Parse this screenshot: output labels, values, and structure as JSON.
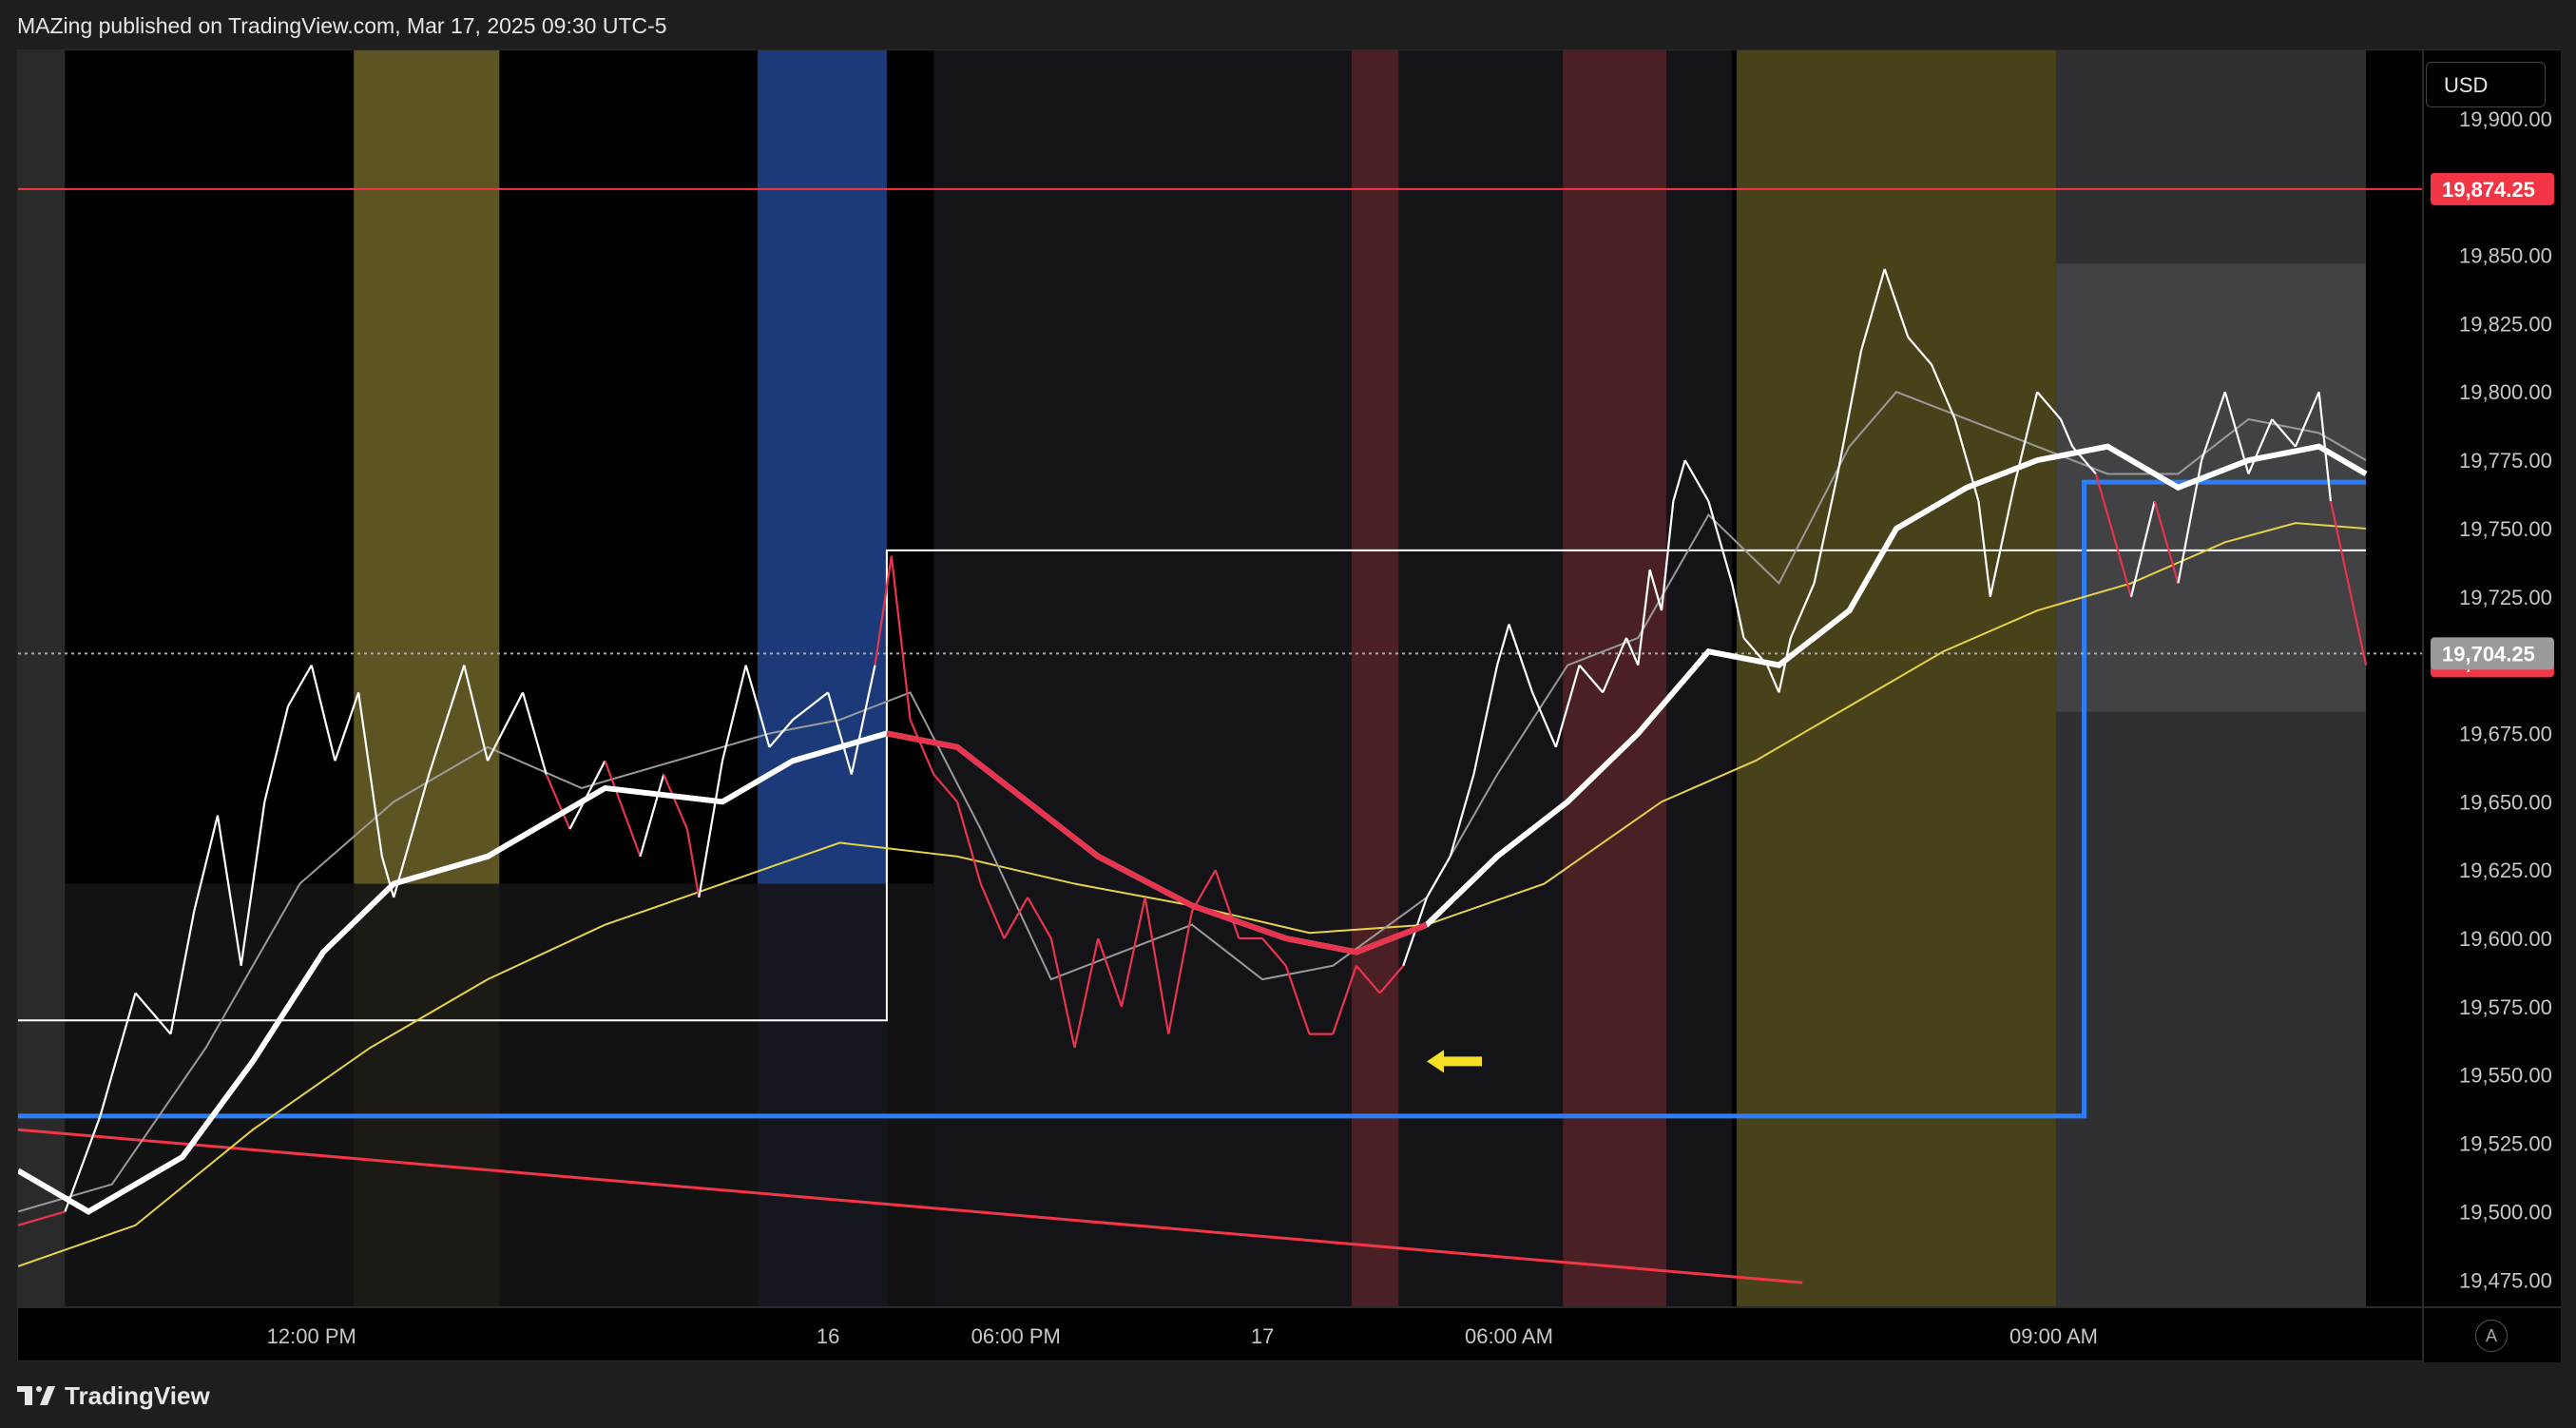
{
  "header": {
    "text": "MAZing published on TradingView.com, Mar 17, 2025 09:30 UTC-5"
  },
  "brand": {
    "name": "TradingView"
  },
  "axis": {
    "currency": "USD",
    "auto_label": "A"
  },
  "colors": {
    "background": "#000000",
    "price_up": "#ffffff",
    "price_down": "#e8344e",
    "red_line": "#f23645",
    "blue_box": "#2f7df6",
    "yellow_ma": "#e6d34a",
    "gray_ma": "#9a9a9a",
    "arrow": "#f5e025"
  },
  "chart_data": {
    "type": "line",
    "symbol_currency": "USD",
    "ylim": [
      19465,
      19925
    ],
    "y_ticks": [
      19475,
      19500,
      19525,
      19550,
      19575,
      19600,
      19625,
      19650,
      19675,
      19700,
      19725,
      19750,
      19775,
      19800,
      19825,
      19850,
      19875,
      19900
    ],
    "y_tick_labels": [
      "19,475.00",
      "19,500.00",
      "19,525.00",
      "19,550.00",
      "19,575.00",
      "19,600.00",
      "19,625.00",
      "19,650.00",
      "19,675.00",
      "19,700.00",
      "19,725.00",
      "19,750.00",
      "19,775.00",
      "19,800.00",
      "19,825.00",
      "19,850.00",
      "19,875.00",
      "19,900.00"
    ],
    "x_tick_labels": [
      {
        "t": 0.125,
        "label": "12:00 PM"
      },
      {
        "t": 0.345,
        "label": "16"
      },
      {
        "t": 0.425,
        "label": "06:00 PM"
      },
      {
        "t": 0.53,
        "label": "17"
      },
      {
        "t": 0.635,
        "label": "06:00 AM"
      },
      {
        "t": 0.867,
        "label": "09:00 AM"
      }
    ],
    "price_labels": [
      {
        "label": "19,874.25",
        "value": 19874.25,
        "color": "#f23645"
      },
      {
        "label": "19,701.50",
        "value": 19701.5,
        "color": "#f23645"
      },
      {
        "label": "19,704.25",
        "value": 19704.25,
        "color": "#9a9a9a"
      }
    ],
    "horizontal_line": {
      "value": 19874.25
    },
    "current_price": 19701.5,
    "price_series": [
      [
        0.0,
        19495
      ],
      [
        0.02,
        19500
      ],
      [
        0.035,
        19535
      ],
      [
        0.05,
        19580
      ],
      [
        0.065,
        19565
      ],
      [
        0.075,
        19610
      ],
      [
        0.085,
        19645
      ],
      [
        0.095,
        19590
      ],
      [
        0.105,
        19650
      ],
      [
        0.115,
        19685
      ],
      [
        0.125,
        19700
      ],
      [
        0.135,
        19665
      ],
      [
        0.145,
        19690
      ],
      [
        0.155,
        19630
      ],
      [
        0.16,
        19615
      ],
      [
        0.175,
        19660
      ],
      [
        0.19,
        19700
      ],
      [
        0.2,
        19665
      ],
      [
        0.215,
        19690
      ],
      [
        0.225,
        19660
      ],
      [
        0.235,
        19640
      ],
      [
        0.25,
        19665
      ],
      [
        0.265,
        19630
      ],
      [
        0.275,
        19660
      ],
      [
        0.285,
        19640
      ],
      [
        0.29,
        19615
      ],
      [
        0.3,
        19665
      ],
      [
        0.31,
        19700
      ],
      [
        0.32,
        19670
      ],
      [
        0.33,
        19680
      ],
      [
        0.345,
        19690
      ],
      [
        0.355,
        19660
      ],
      [
        0.365,
        19700
      ],
      [
        0.372,
        19740
      ],
      [
        0.38,
        19680
      ],
      [
        0.39,
        19660
      ],
      [
        0.4,
        19650
      ],
      [
        0.41,
        19620
      ],
      [
        0.42,
        19600
      ],
      [
        0.43,
        19615
      ],
      [
        0.44,
        19600
      ],
      [
        0.45,
        19560
      ],
      [
        0.46,
        19600
      ],
      [
        0.47,
        19575
      ],
      [
        0.48,
        19615
      ],
      [
        0.49,
        19565
      ],
      [
        0.5,
        19610
      ],
      [
        0.51,
        19625
      ],
      [
        0.52,
        19600
      ],
      [
        0.53,
        19600
      ],
      [
        0.54,
        19590
      ],
      [
        0.55,
        19565
      ],
      [
        0.56,
        19565
      ],
      [
        0.57,
        19590
      ],
      [
        0.58,
        19580
      ],
      [
        0.59,
        19590
      ],
      [
        0.6,
        19615
      ],
      [
        0.61,
        19630
      ],
      [
        0.62,
        19660
      ],
      [
        0.63,
        19700
      ],
      [
        0.635,
        19715
      ],
      [
        0.645,
        19690
      ],
      [
        0.655,
        19670
      ],
      [
        0.665,
        19700
      ],
      [
        0.675,
        19690
      ],
      [
        0.685,
        19710
      ],
      [
        0.69,
        19700
      ],
      [
        0.695,
        19735
      ],
      [
        0.7,
        19720
      ],
      [
        0.705,
        19760
      ],
      [
        0.71,
        19775
      ],
      [
        0.72,
        19760
      ],
      [
        0.73,
        19730
      ],
      [
        0.735,
        19710
      ],
      [
        0.745,
        19700
      ],
      [
        0.75,
        19690
      ],
      [
        0.755,
        19710
      ],
      [
        0.765,
        19730
      ],
      [
        0.775,
        19770
      ],
      [
        0.785,
        19815
      ],
      [
        0.795,
        19845
      ],
      [
        0.805,
        19820
      ],
      [
        0.815,
        19810
      ],
      [
        0.825,
        19790
      ],
      [
        0.835,
        19760
      ],
      [
        0.84,
        19725
      ],
      [
        0.85,
        19765
      ],
      [
        0.86,
        19800
      ],
      [
        0.87,
        19790
      ],
      [
        0.875,
        19780
      ],
      [
        0.885,
        19770
      ],
      [
        0.89,
        19755
      ],
      [
        0.895,
        19740
      ],
      [
        0.9,
        19725
      ],
      [
        0.91,
        19760
      ],
      [
        0.92,
        19730
      ],
      [
        0.93,
        19775
      ],
      [
        0.94,
        19800
      ],
      [
        0.95,
        19770
      ],
      [
        0.96,
        19790
      ],
      [
        0.97,
        19780
      ],
      [
        0.98,
        19800
      ],
      [
        0.985,
        19760
      ],
      [
        0.99,
        19740
      ],
      [
        0.995,
        19720
      ],
      [
        1.0,
        19700
      ]
    ],
    "ma_white": [
      [
        0.0,
        19515
      ],
      [
        0.03,
        19500
      ],
      [
        0.07,
        19520
      ],
      [
        0.1,
        19555
      ],
      [
        0.13,
        19595
      ],
      [
        0.16,
        19620
      ],
      [
        0.2,
        19630
      ],
      [
        0.23,
        19645
      ],
      [
        0.25,
        19655
      ],
      [
        0.3,
        19650
      ],
      [
        0.33,
        19665
      ],
      [
        0.35,
        19670
      ],
      [
        0.37,
        19675
      ],
      [
        0.4,
        19670
      ],
      [
        0.43,
        19650
      ],
      [
        0.46,
        19630
      ],
      [
        0.5,
        19612
      ],
      [
        0.54,
        19600
      ],
      [
        0.57,
        19595
      ],
      [
        0.6,
        19605
      ],
      [
        0.63,
        19630
      ],
      [
        0.66,
        19650
      ],
      [
        0.69,
        19675
      ],
      [
        0.72,
        19705
      ],
      [
        0.75,
        19700
      ],
      [
        0.78,
        19720
      ],
      [
        0.8,
        19750
      ],
      [
        0.83,
        19765
      ],
      [
        0.86,
        19775
      ],
      [
        0.89,
        19780
      ],
      [
        0.92,
        19765
      ],
      [
        0.95,
        19775
      ],
      [
        0.98,
        19780
      ],
      [
        1.0,
        19770
      ]
    ],
    "ma_yellow": [
      [
        0.0,
        19480
      ],
      [
        0.05,
        19495
      ],
      [
        0.1,
        19530
      ],
      [
        0.15,
        19560
      ],
      [
        0.2,
        19585
      ],
      [
        0.25,
        19605
      ],
      [
        0.3,
        19620
      ],
      [
        0.35,
        19635
      ],
      [
        0.4,
        19630
      ],
      [
        0.45,
        19620
      ],
      [
        0.5,
        19612
      ],
      [
        0.55,
        19602
      ],
      [
        0.6,
        19605
      ],
      [
        0.65,
        19620
      ],
      [
        0.7,
        19650
      ],
      [
        0.74,
        19665
      ],
      [
        0.78,
        19685
      ],
      [
        0.82,
        19705
      ],
      [
        0.86,
        19720
      ],
      [
        0.9,
        19730
      ],
      [
        0.94,
        19745
      ],
      [
        0.97,
        19752
      ],
      [
        1.0,
        19750
      ]
    ],
    "ma_gray": [
      [
        0.0,
        19500
      ],
      [
        0.04,
        19510
      ],
      [
        0.08,
        19560
      ],
      [
        0.12,
        19620
      ],
      [
        0.16,
        19650
      ],
      [
        0.2,
        19670
      ],
      [
        0.24,
        19655
      ],
      [
        0.28,
        19665
      ],
      [
        0.32,
        19675
      ],
      [
        0.35,
        19680
      ],
      [
        0.38,
        19690
      ],
      [
        0.41,
        19640
      ],
      [
        0.44,
        19585
      ],
      [
        0.47,
        19595
      ],
      [
        0.5,
        19605
      ],
      [
        0.53,
        19585
      ],
      [
        0.56,
        19590
      ],
      [
        0.6,
        19615
      ],
      [
        0.63,
        19660
      ],
      [
        0.66,
        19700
      ],
      [
        0.69,
        19710
      ],
      [
        0.72,
        19755
      ],
      [
        0.75,
        19730
      ],
      [
        0.78,
        19780
      ],
      [
        0.8,
        19800
      ],
      [
        0.83,
        19790
      ],
      [
        0.86,
        19780
      ],
      [
        0.89,
        19770
      ],
      [
        0.92,
        19770
      ],
      [
        0.95,
        19790
      ],
      [
        0.98,
        19785
      ],
      [
        1.0,
        19775
      ]
    ],
    "trend_line_red": [
      [
        0.0,
        19530
      ],
      [
        0.76,
        19474
      ]
    ],
    "rectangles": [
      {
        "t0": 0.0,
        "t1": 0.37,
        "v0": 19570,
        "v1": 19742,
        "stroke": "#ffffff"
      },
      {
        "t0": 0.37,
        "t1": 1.0,
        "v0": 19742,
        "v1": 19742,
        "stroke": "#ffffff"
      }
    ],
    "blue_box": {
      "t0": 0.0,
      "t1": 0.88,
      "v_low": 19535,
      "v_high": 19767,
      "t_end": 1.0
    },
    "sessions": [
      {
        "t0": 0.0,
        "t1": 0.02,
        "color": "#2a2a2a"
      },
      {
        "t0": 0.143,
        "t1": 0.205,
        "color": "#5c5422"
      },
      {
        "t0": 0.315,
        "t1": 0.37,
        "color": "#1c3a7a"
      },
      {
        "t0": 0.39,
        "t1": 0.73,
        "color": "#141418"
      },
      {
        "t0": 0.568,
        "t1": 0.588,
        "color": "#4a2025"
      },
      {
        "t0": 0.658,
        "t1": 0.702,
        "color": "#4a2025"
      },
      {
        "t0": 0.732,
        "t1": 0.868,
        "color": "#48421a"
      },
      {
        "t0": 0.868,
        "t1": 1.0,
        "color": "#303033"
      }
    ]
  }
}
